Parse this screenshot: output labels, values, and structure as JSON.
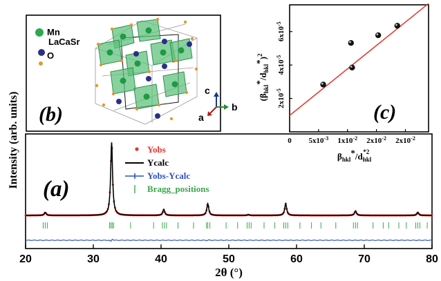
{
  "chart_data": [
    {
      "id": "a",
      "type": "line",
      "panel_label": "(a)",
      "xlabel": "2θ (°)",
      "ylabel": "Intensity (arb. units)",
      "xlim": [
        20,
        80
      ],
      "x_ticks": [
        20,
        30,
        40,
        50,
        60,
        70,
        80
      ],
      "legend_position": "top-center",
      "series": [
        {
          "name": "Yobs",
          "style": "markers",
          "color": "#e8332a"
        },
        {
          "name": "Ycalc",
          "style": "line",
          "color": "#000000"
        },
        {
          "name": "Yobs-Ycalc",
          "style": "line",
          "color": "#2c4fc8"
        },
        {
          "name": "Bragg_positions",
          "style": "ticks",
          "color": "#3aa64a"
        }
      ],
      "peaks": [
        {
          "x": 22.9,
          "rel_intensity": 0.04
        },
        {
          "x": 32.7,
          "rel_intensity": 1.0
        },
        {
          "x": 40.4,
          "rel_intensity": 0.08
        },
        {
          "x": 46.9,
          "rel_intensity": 0.16
        },
        {
          "x": 52.9,
          "rel_intensity": 0.01
        },
        {
          "x": 58.4,
          "rel_intensity": 0.16
        },
        {
          "x": 68.7,
          "rel_intensity": 0.06
        },
        {
          "x": 77.9,
          "rel_intensity": 0.04
        }
      ],
      "bragg_positions": [
        22.6,
        22.9,
        23.2,
        32.4,
        32.6,
        32.8,
        33.0,
        35.5,
        38.9,
        40.2,
        40.5,
        40.8,
        42.5,
        44.8,
        46.7,
        46.9,
        47.2,
        49.6,
        51.3,
        52.7,
        53.0,
        53.3,
        55.2,
        56.8,
        58.1,
        58.4,
        58.7,
        60.5,
        62.2,
        63.6,
        65.8,
        68.4,
        68.7,
        69.0,
        71.3,
        72.8,
        73.6,
        75.1,
        76.2,
        77.6,
        77.9,
        78.2,
        79.3
      ]
    },
    {
      "id": "b",
      "type": "other",
      "panel_label": "(b)",
      "legend": [
        {
          "label": "Mn",
          "color": "#2fa84f"
        },
        {
          "label": "LaCaSr",
          "color": "#2b2f86"
        },
        {
          "label": "O",
          "color": "#e8952a"
        }
      ],
      "axes": [
        {
          "label": "c",
          "color": "#1c3a8a"
        },
        {
          "label": "b",
          "color": "#2a8a3a"
        },
        {
          "label": "a",
          "color": "#b01c1c"
        }
      ]
    },
    {
      "id": "c",
      "type": "scatter",
      "panel_label": "(c)",
      "xlabel": "βhkl*/dhkl*2",
      "ylabel": "(βhkl*/dhkl*)2",
      "xlim": [
        0,
        0.024
      ],
      "ylim": [
        0,
        7.6e-05
      ],
      "x_tick_values": [
        0,
        0.005,
        0.01,
        0.015,
        0.02
      ],
      "x_tick_labels": [
        "0",
        "5x10-3",
        "1x10-2",
        "2x10-2",
        "2x10-2"
      ],
      "y_tick_values": [
        2e-05,
        4e-05,
        6e-05
      ],
      "y_tick_labels": [
        "2x10-5",
        "4x10-5",
        "6x10-5"
      ],
      "points": [
        {
          "x": 0.0058,
          "y": 2.83e-05
        },
        {
          "x": 0.0106,
          "y": 5.32e-05
        },
        {
          "x": 0.0108,
          "y": 3.85e-05
        },
        {
          "x": 0.0153,
          "y": 5.78e-05
        },
        {
          "x": 0.0186,
          "y": 6.35e-05
        }
      ],
      "fit_line": {
        "x": [
          0,
          0.024
        ],
        "y": [
          9.8e-06,
          7.68e-05
        ],
        "color": "#e33b2e"
      }
    }
  ]
}
